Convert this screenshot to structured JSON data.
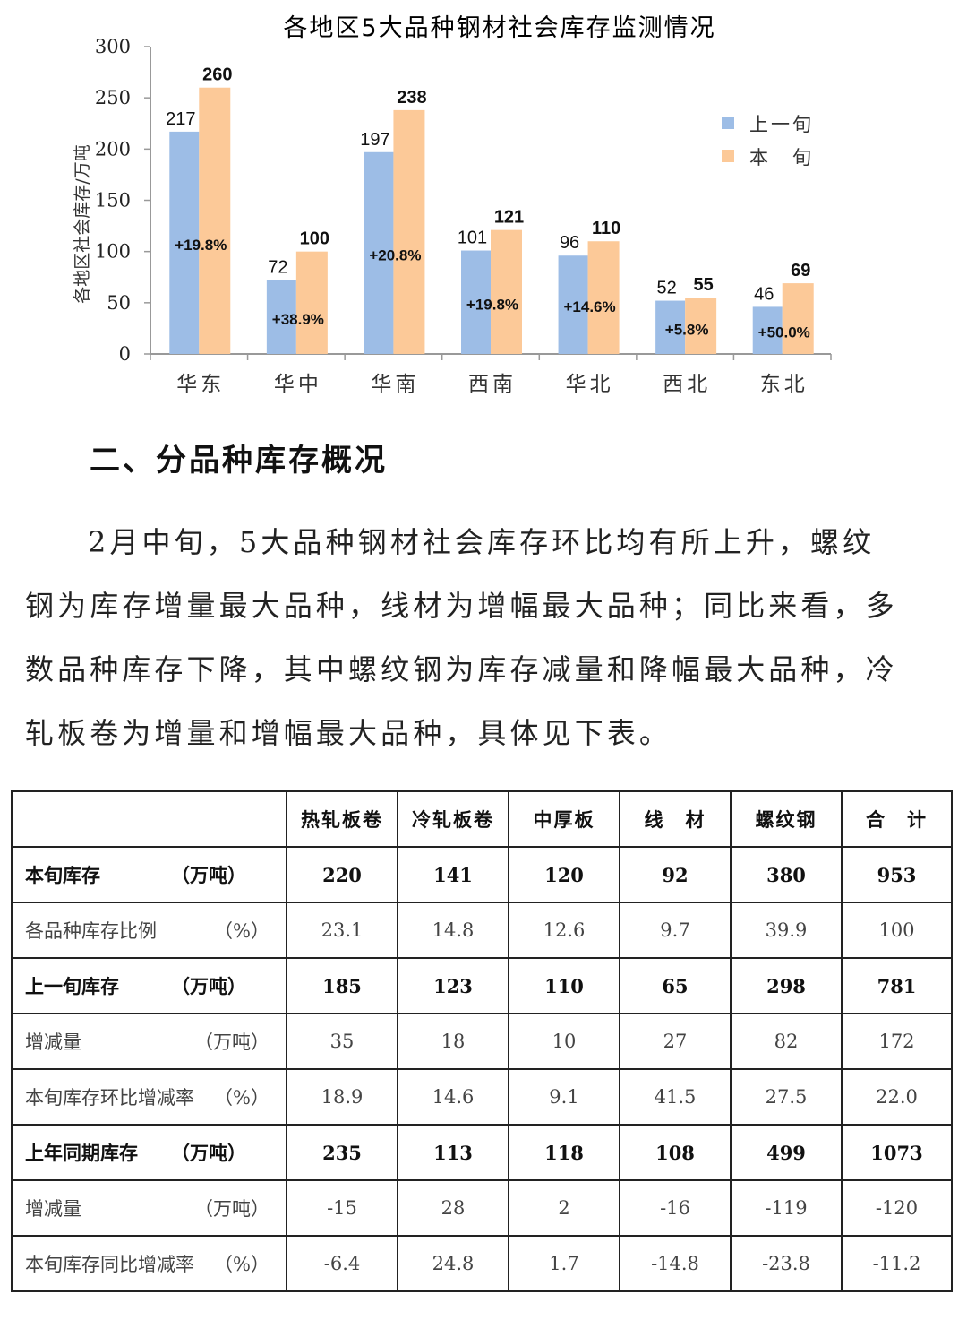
{
  "chart_data": {
    "type": "bar",
    "title": "各地区5大品种钢材社会库存监测情况",
    "ylabel": "各地区社会库存/万吨",
    "xlabel": "",
    "ylim": [
      0,
      300
    ],
    "yticks": [
      "0",
      "50",
      "100",
      "150",
      "200",
      "250",
      "300"
    ],
    "grid": false,
    "legend_position": "right",
    "categories": [
      "华东",
      "华中",
      "华南",
      "西南",
      "华北",
      "西北",
      "东北"
    ],
    "series": [
      {
        "name": "上一旬",
        "color": "#9dbde6",
        "values": [
          217,
          72,
          197,
          101,
          96,
          52,
          46
        ]
      },
      {
        "name": "本　旬",
        "color": "#fcc998",
        "values": [
          260,
          100,
          238,
          121,
          110,
          55,
          69
        ]
      }
    ],
    "annotations": [
      "+19.8%",
      "+38.9%",
      "+20.8%",
      "+19.8%",
      "+14.6%",
      "+5.8%",
      "+50.0%"
    ]
  },
  "section": {
    "heading": "二、分品种库存概况",
    "paragraph": "2月中旬，5大品种钢材社会库存环比均有所上升，螺纹钢为库存增量最大品种，线材为增幅最大品种；同比来看，多数品种库存下降，其中螺纹钢为库存减量和降幅最大品种，冷轧板卷为增量和增幅最大品种，具体见下表。"
  },
  "table": {
    "headers": [
      "",
      "热轧板卷",
      "冷轧板卷",
      "中厚板",
      "线　材",
      "螺纹钢",
      "合　计"
    ],
    "rows": [
      {
        "label": "本旬库存",
        "unit": "（万吨）",
        "bold": true,
        "values": [
          "220",
          "141",
          "120",
          "92",
          "380",
          "953"
        ]
      },
      {
        "label": "各品种库存比例",
        "unit": "（%）",
        "bold": false,
        "values": [
          "23.1",
          "14.8",
          "12.6",
          "9.7",
          "39.9",
          "100"
        ]
      },
      {
        "label": "上一旬库存",
        "unit": "（万吨）",
        "bold": true,
        "values": [
          "185",
          "123",
          "110",
          "65",
          "298",
          "781"
        ]
      },
      {
        "label": "增减量",
        "unit": "（万吨）",
        "bold": false,
        "values": [
          "35",
          "18",
          "10",
          "27",
          "82",
          "172"
        ]
      },
      {
        "label": "本旬库存环比增减率",
        "unit": "（%）",
        "bold": false,
        "values": [
          "18.9",
          "14.6",
          "9.1",
          "41.5",
          "27.5",
          "22.0"
        ]
      },
      {
        "label": "上年同期库存",
        "unit": "（万吨）",
        "bold": true,
        "values": [
          "235",
          "113",
          "118",
          "108",
          "499",
          "1073"
        ]
      },
      {
        "label": "增减量",
        "unit": "（万吨）",
        "bold": false,
        "values": [
          "-15",
          "28",
          "2",
          "-16",
          "-119",
          "-120"
        ]
      },
      {
        "label": "本旬库存同比增减率",
        "unit": "（%）",
        "bold": false,
        "values": [
          "-6.4",
          "24.8",
          "1.7",
          "-14.8",
          "-23.8",
          "-11.2"
        ]
      }
    ]
  }
}
